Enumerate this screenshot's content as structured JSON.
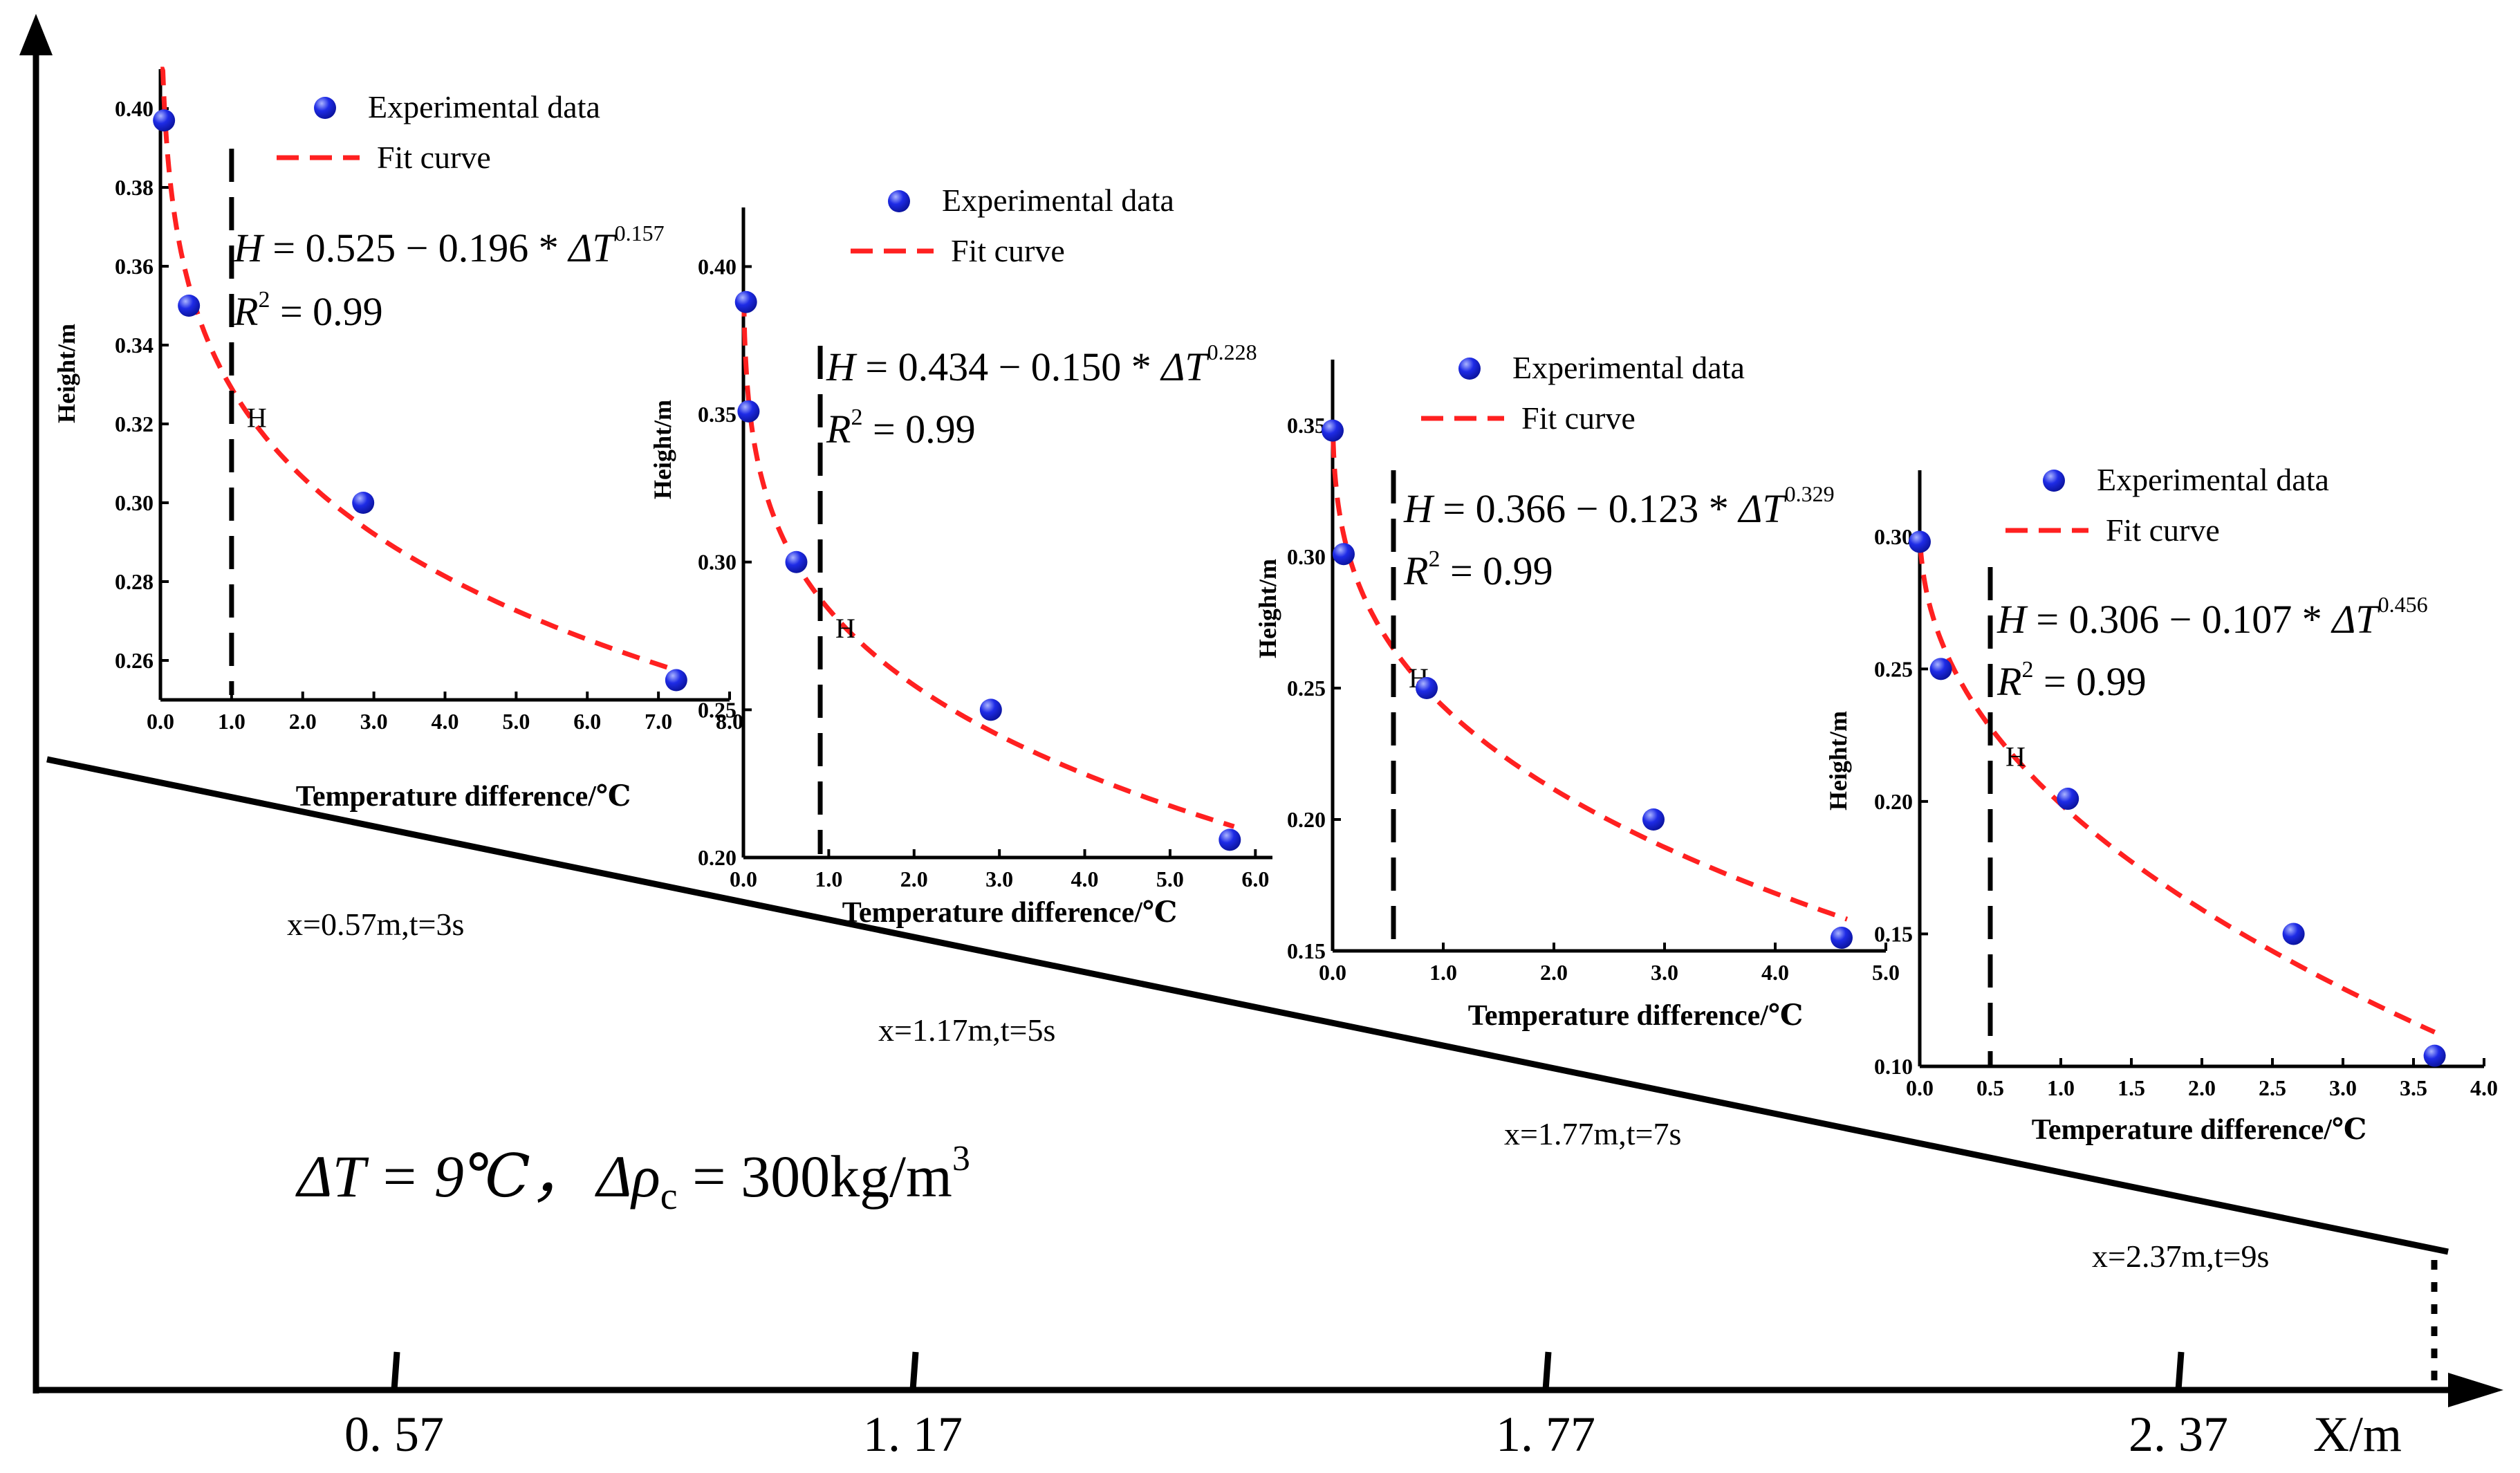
{
  "figure": {
    "condition": {
      "delta_t": "ΔT = 9℃，",
      "delta_rho": "Δρ",
      "delta_rho_sub": "c",
      "delta_rho_value": " = 300kg/m",
      "delta_rho_exp": "3"
    },
    "x_axis": {
      "label": "X/m",
      "ticks": [
        "0. 57",
        "1. 17",
        "1. 77",
        "2. 37"
      ],
      "tick_values": [
        0.57,
        1.17,
        1.77,
        2.37
      ]
    },
    "slope_labels": [
      "x=0.57m,t=3s",
      "x=1.17m,t=5s",
      "x=1.77m,t=7s",
      "x=2.37m,t=9s"
    ],
    "colors": {
      "axis": "#000000",
      "fit": "#ff2020",
      "marker": "#1e2be6",
      "marker_highlight": "#aab4ff"
    }
  },
  "chart_data": [
    {
      "type": "scatter",
      "title": "x=0.57m,t=3s",
      "xlabel": "Temperature difference/℃",
      "ylabel": "Height/m",
      "xlim": [
        0,
        8
      ],
      "ylim": [
        0.25,
        0.41
      ],
      "xticks": [
        "0.0",
        "1.0",
        "2.0",
        "3.0",
        "4.0",
        "5.0",
        "6.0",
        "7.0",
        "8.0"
      ],
      "xtick_values": [
        0,
        1,
        2,
        3,
        4,
        5,
        6,
        7,
        8
      ],
      "yticks": [
        "0.26",
        "0.28",
        "0.30",
        "0.32",
        "0.34",
        "0.36",
        "0.38",
        "0.40"
      ],
      "ytick_values": [
        0.26,
        0.28,
        0.3,
        0.32,
        0.34,
        0.36,
        0.38,
        0.4
      ],
      "legend": {
        "points": "Experimental data",
        "fit": "Fit curve"
      },
      "series": [
        {
          "name": "Experimental data",
          "x": [
            0.05,
            0.4,
            2.85,
            7.25
          ],
          "y": [
            0.397,
            0.35,
            0.3,
            0.255
          ]
        }
      ],
      "fit": {
        "a": 0.525,
        "b": 0.196,
        "c": 0.157,
        "x_start": 0.002,
        "x_end": 7.25
      },
      "equation": {
        "lhs": "H",
        "rhs": " = 0.525 − 0.196 * ",
        "var": "ΔT",
        "exp": "0.157",
        "r2": "R",
        "r2_val": " = 0.99"
      },
      "h_marker": {
        "x": 1.0,
        "label": "H"
      }
    },
    {
      "type": "scatter",
      "title": "x=1.17m,t=5s",
      "xlabel": "Temperature difference/℃",
      "ylabel": "Height/m",
      "xlim": [
        0,
        6.2
      ],
      "ylim": [
        0.2,
        0.42
      ],
      "xticks": [
        "0.0",
        "1.0",
        "2.0",
        "3.0",
        "4.0",
        "5.0",
        "6.0"
      ],
      "xtick_values": [
        0,
        1,
        2,
        3,
        4,
        5,
        6
      ],
      "yticks": [
        "0.20",
        "0.25",
        "0.30",
        "0.35",
        "0.40"
      ],
      "ytick_values": [
        0.2,
        0.25,
        0.3,
        0.35,
        0.4
      ],
      "legend": {
        "points": "Experimental data",
        "fit": "Fit curve"
      },
      "series": [
        {
          "name": "Experimental data",
          "x": [
            0.03,
            0.06,
            0.62,
            2.9,
            5.7
          ],
          "y": [
            0.388,
            0.351,
            0.3,
            0.25,
            0.206
          ]
        }
      ],
      "fit": {
        "a": 0.434,
        "b": 0.15,
        "c": 0.228,
        "x_start": 0.005,
        "x_end": 5.75
      },
      "equation": {
        "lhs": "H",
        "rhs": " = 0.434 − 0.150 * ",
        "var": "ΔT",
        "exp": "0.228",
        "r2": "R",
        "r2_val": " = 0.99"
      },
      "h_marker": {
        "x": 0.9,
        "label": "H"
      }
    },
    {
      "type": "scatter",
      "title": "x=1.77m,t=7s",
      "xlabel": "Temperature difference/℃",
      "ylabel": "Height/m",
      "xlim": [
        0,
        5.0
      ],
      "ylim": [
        0.15,
        0.375
      ],
      "xticks": [
        "0.0",
        "1.0",
        "2.0",
        "3.0",
        "4.0",
        "5.0"
      ],
      "xtick_values": [
        0,
        1,
        2,
        3,
        4,
        5
      ],
      "yticks": [
        "0.15",
        "0.20",
        "0.25",
        "0.30",
        "0.35"
      ],
      "ytick_values": [
        0.15,
        0.2,
        0.25,
        0.3,
        0.35
      ],
      "legend": {
        "points": "Experimental data",
        "fit": "Fit curve"
      },
      "series": [
        {
          "name": "Experimental data",
          "x": [
            0.0,
            0.1,
            0.85,
            2.9,
            4.6
          ],
          "y": [
            0.348,
            0.301,
            0.25,
            0.2,
            0.155
          ]
        }
      ],
      "fit": {
        "a": 0.366,
        "b": 0.123,
        "c": 0.329,
        "x_start": 0.005,
        "x_end": 4.65
      },
      "equation": {
        "lhs": "H",
        "rhs": " = 0.366 − 0.123 * ",
        "var": "ΔT",
        "exp": "0.329",
        "r2": "R",
        "r2_val": " = 0.99"
      },
      "h_marker": {
        "x": 0.55,
        "label": "H"
      }
    },
    {
      "type": "scatter",
      "title": "x=2.37m,t=9s",
      "xlabel": "Temperature difference/℃",
      "ylabel": "Height/m",
      "xlim": [
        0,
        4.0
      ],
      "ylim": [
        0.1,
        0.325
      ],
      "xticks": [
        "0.0",
        "0.5",
        "1.0",
        "1.5",
        "2.0",
        "2.5",
        "3.0",
        "3.5",
        "4.0"
      ],
      "xtick_values": [
        0,
        0.5,
        1,
        1.5,
        2,
        2.5,
        3,
        3.5,
        4
      ],
      "yticks": [
        "0.10",
        "0.15",
        "0.20",
        "0.25",
        "0.30"
      ],
      "ytick_values": [
        0.1,
        0.15,
        0.2,
        0.25,
        0.3
      ],
      "legend": {
        "points": "Experimental data",
        "fit": "Fit curve"
      },
      "series": [
        {
          "name": "Experimental data",
          "x": [
            0.0,
            0.15,
            1.05,
            2.65,
            3.65
          ],
          "y": [
            0.298,
            0.25,
            0.201,
            0.15,
            0.104
          ]
        }
      ],
      "fit": {
        "a": 0.306,
        "b": 0.107,
        "c": 0.456,
        "x_start": 0.005,
        "x_end": 3.65
      },
      "equation": {
        "lhs": "H",
        "rhs": " = 0.306 − 0.107 * ",
        "var": "ΔT",
        "exp": "0.456",
        "r2": "R",
        "r2_val": " = 0.99"
      },
      "h_marker": {
        "x": 0.5,
        "label": "H"
      }
    }
  ]
}
